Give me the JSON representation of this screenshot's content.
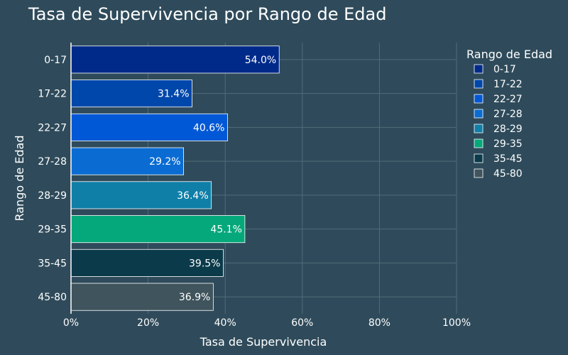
{
  "chart_data": {
    "type": "bar",
    "orientation": "horizontal",
    "title": "Tasa de Supervivencia por Rango de Edad",
    "xlabel": "Tasa de Supervivencia",
    "ylabel": "Rango de Edad",
    "xlim": [
      0,
      100
    ],
    "x_ticks": [
      "0%",
      "20%",
      "40%",
      "60%",
      "80%",
      "100%"
    ],
    "categories": [
      "0-17",
      "17-22",
      "22-27",
      "27-28",
      "28-29",
      "29-35",
      "35-45",
      "45-80"
    ],
    "values": [
      54.0,
      31.4,
      40.6,
      29.2,
      36.4,
      45.1,
      39.5,
      36.9
    ],
    "value_labels": [
      "54.0%",
      "31.4%",
      "40.6%",
      "29.2%",
      "36.4%",
      "45.1%",
      "39.5%",
      "36.9%"
    ],
    "colors": [
      "#002a8a",
      "#0047ab",
      "#0058d6",
      "#0a6cd3",
      "#0f7fa8",
      "#05a87a",
      "#0b3a4a",
      "#3f545c"
    ],
    "legend": {
      "title": "Rango de Edad",
      "placement": "right",
      "entries": [
        "0-17",
        "17-22",
        "22-27",
        "27-28",
        "28-29",
        "29-35",
        "35-45",
        "45-80"
      ]
    },
    "grid": true
  }
}
